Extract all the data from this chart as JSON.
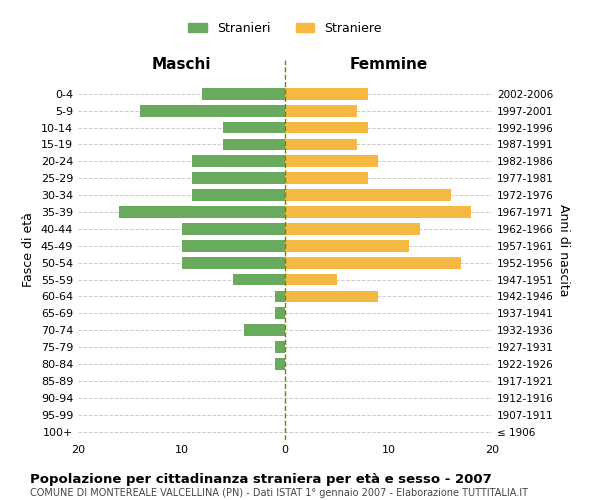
{
  "age_groups": [
    "100+",
    "95-99",
    "90-94",
    "85-89",
    "80-84",
    "75-79",
    "70-74",
    "65-69",
    "60-64",
    "55-59",
    "50-54",
    "45-49",
    "40-44",
    "35-39",
    "30-34",
    "25-29",
    "20-24",
    "15-19",
    "10-14",
    "5-9",
    "0-4"
  ],
  "birth_years": [
    "≤ 1906",
    "1907-1911",
    "1912-1916",
    "1917-1921",
    "1922-1926",
    "1927-1931",
    "1932-1936",
    "1937-1941",
    "1942-1946",
    "1947-1951",
    "1952-1956",
    "1957-1961",
    "1962-1966",
    "1967-1971",
    "1972-1976",
    "1977-1981",
    "1982-1986",
    "1987-1991",
    "1992-1996",
    "1997-2001",
    "2002-2006"
  ],
  "maschi": [
    0,
    0,
    0,
    0,
    1,
    1,
    4,
    1,
    1,
    5,
    10,
    10,
    10,
    16,
    9,
    9,
    9,
    6,
    6,
    14,
    8
  ],
  "femmine": [
    0,
    0,
    0,
    0,
    0,
    0,
    0,
    0,
    9,
    5,
    17,
    12,
    13,
    18,
    16,
    8,
    9,
    7,
    8,
    7,
    8
  ],
  "maschi_color": "#6aaa5e",
  "femmine_color": "#f5b942",
  "background_color": "#ffffff",
  "grid_color": "#cccccc",
  "title": "Popolazione per cittadinanza straniera per età e sesso - 2007",
  "subtitle": "COMUNE DI MONTEREALE VALCELLINA (PN) - Dati ISTAT 1° gennaio 2007 - Elaborazione TUTTITALIA.IT",
  "xlabel_left": "Maschi",
  "xlabel_right": "Femmine",
  "ylabel_left": "Fasce di età",
  "ylabel_right": "Anni di nascita",
  "legend_maschi": "Stranieri",
  "legend_femmine": "Straniere",
  "xlim": 20
}
